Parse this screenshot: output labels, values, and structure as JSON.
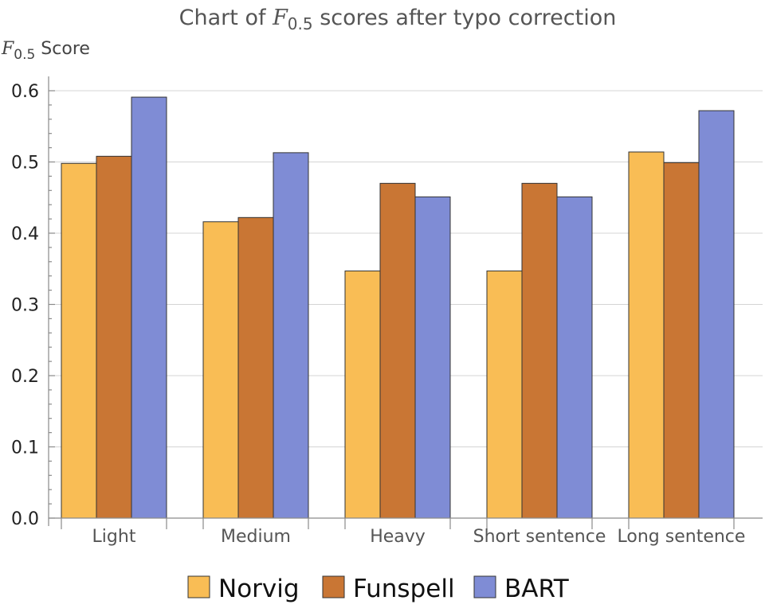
{
  "chart_data": {
    "type": "bar",
    "title_prefix": "Chart of ",
    "title_symbol": "F",
    "title_subscript": "0.5",
    "title_suffix": " scores after typo correction",
    "ylabel_symbol": "F",
    "ylabel_subscript": "0.5",
    "ylabel_suffix": " Score",
    "xlabel": "",
    "categories": [
      "Light",
      "Medium",
      "Heavy",
      "Short sentence",
      "Long sentence"
    ],
    "series": [
      {
        "name": "Norvig",
        "color": "#f9bd55",
        "values": [
          0.498,
          0.416,
          0.347,
          0.347,
          0.514
        ]
      },
      {
        "name": "Funspell",
        "color": "#c97634",
        "values": [
          0.508,
          0.422,
          0.47,
          0.47,
          0.499
        ]
      },
      {
        "name": "BART",
        "color": "#7f8cd5",
        "values": [
          0.591,
          0.513,
          0.451,
          0.451,
          0.572
        ]
      }
    ],
    "ylim": [
      0,
      0.62
    ],
    "yticks": [
      "0.0",
      "0.1",
      "0.2",
      "0.3",
      "0.4",
      "0.5",
      "0.6"
    ],
    "grid": true,
    "legend_position": "bottom"
  }
}
